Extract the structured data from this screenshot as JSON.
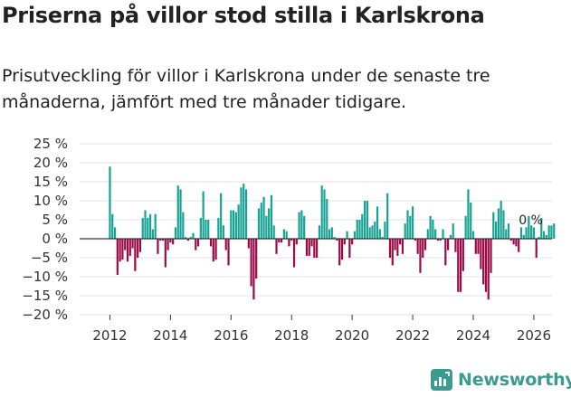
{
  "header": {
    "title": "Priserna på villor stod stilla i Karlskrona",
    "subtitle": "Prisutveckling för villor i Karlskrona under de senaste tre månaderna, jämfört med tre månader tidigare."
  },
  "brand": {
    "name": "Newsworthy",
    "icon": "newsworthy-logo-icon"
  },
  "colors": {
    "positive": "#17a294",
    "negative": "#9b0a47",
    "zero_line": "#333333",
    "grid": "#e3e3e3",
    "brand": "#3d9a8f"
  },
  "chart_data": {
    "type": "bar",
    "y_unit": "%",
    "ylim": [
      -20,
      25
    ],
    "yticks": [
      "25 %",
      "20 %",
      "15 %",
      "10 %",
      "5 %",
      "0 %",
      "−5 %",
      "−10 %",
      "−15 %",
      "−20 %"
    ],
    "ytick_values": [
      25,
      20,
      15,
      10,
      5,
      0,
      -5,
      -10,
      -15,
      -20
    ],
    "x_start": 2012.0,
    "x_step": 0.0833333,
    "xlim": [
      2011.0,
      2026.6
    ],
    "xticks": [
      "2012",
      "2014",
      "2016",
      "2018",
      "2020",
      "2022",
      "2024",
      "2026"
    ],
    "xtick_values": [
      2012,
      2014,
      2016,
      2018,
      2020,
      2022,
      2024,
      2026
    ],
    "annotation": {
      "text": "0 %",
      "x": 2025.9,
      "y": 0
    },
    "values": [
      19,
      6.5,
      3,
      -9.5,
      -6,
      -5.5,
      -3,
      -6,
      -4.5,
      -2.5,
      -8.5,
      -5,
      -3.5,
      5.5,
      7.5,
      5.5,
      6.5,
      2.5,
      6.5,
      -4,
      -0.5,
      -0.5,
      -7.5,
      -3,
      -1,
      -1.5,
      3,
      14,
      13,
      7,
      0.5,
      -0.5,
      0.5,
      1.5,
      -3,
      -2,
      5.5,
      12.5,
      5,
      5,
      -2,
      -6,
      -5.5,
      5.5,
      12,
      3.5,
      -3,
      -7,
      7.5,
      7.5,
      7,
      9,
      13.5,
      14.5,
      13,
      -2.5,
      -12.5,
      -16,
      -10.5,
      8,
      9.5,
      11,
      6,
      8,
      11.5,
      3.5,
      -4,
      -1,
      -1,
      2.5,
      2,
      -2,
      -0.5,
      -7.5,
      -1.5,
      7,
      7.5,
      6,
      -4.5,
      -4.5,
      -2,
      -5,
      -5,
      3.5,
      14,
      13,
      10.5,
      2.5,
      3,
      0.5,
      -0.5,
      -7,
      -5.5,
      -1.5,
      2,
      -5,
      -1.5,
      2,
      5,
      5,
      6.5,
      10,
      10,
      3,
      3.5,
      4.5,
      8.5,
      2.5,
      0.5,
      4.5,
      12,
      -5,
      -7,
      -3,
      -4.5,
      -1.5,
      -4,
      4,
      7.5,
      6,
      8.5,
      -0.5,
      -4,
      -9,
      -5,
      -3,
      2.5,
      6,
      5,
      2.5,
      -0.5,
      -0.5,
      2.5,
      -7,
      -3,
      1,
      4,
      -3.5,
      -14,
      -14,
      -8.5,
      6,
      13,
      9.5,
      2,
      -4,
      -4,
      -8,
      -12,
      -14,
      -16,
      -9,
      7,
      4.5,
      8,
      10,
      7.5,
      2.5,
      4,
      -0.5,
      -1.5,
      -2,
      -3.5,
      3,
      1,
      3,
      6,
      3.5,
      3,
      -5,
      0.5,
      5.5,
      2,
      1,
      3.5,
      3.5,
      4,
      0
    ]
  }
}
